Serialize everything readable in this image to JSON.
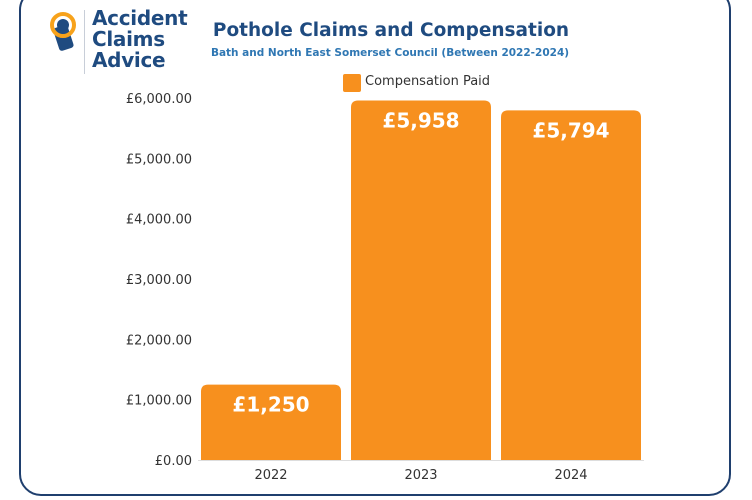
{
  "logo": {
    "line1": "Accident",
    "line2": "Claims",
    "line3": "Advice"
  },
  "colors": {
    "bar": "#f7901e",
    "title": "#1f4b80",
    "subtitle": "#2f77b3",
    "frame": "#1f3f6e",
    "logo_accent": "#f7a21b"
  },
  "chart_data": {
    "type": "bar",
    "title": "Pothole Claims and Compensation",
    "subtitle": "Bath and North East Somerset Council (Between 2022-2024)",
    "categories": [
      "2022",
      "2023",
      "2024"
    ],
    "series": [
      {
        "name": "Compensation Paid",
        "values": [
          1250,
          5958,
          5794
        ],
        "labels": [
          "£1,250",
          "£5,958",
          "£5,794"
        ]
      }
    ],
    "ylim": [
      0,
      6000
    ],
    "yticks": [
      0,
      1000,
      2000,
      3000,
      4000,
      5000,
      6000
    ],
    "ytick_labels": [
      "£0.00",
      "£1,000.00",
      "£2,000.00",
      "£3,000.00",
      "£4,000.00",
      "£5,000.00",
      "£6,000.00"
    ],
    "xlabel": "",
    "ylabel": "",
    "grid": false,
    "legend": "top-center"
  }
}
